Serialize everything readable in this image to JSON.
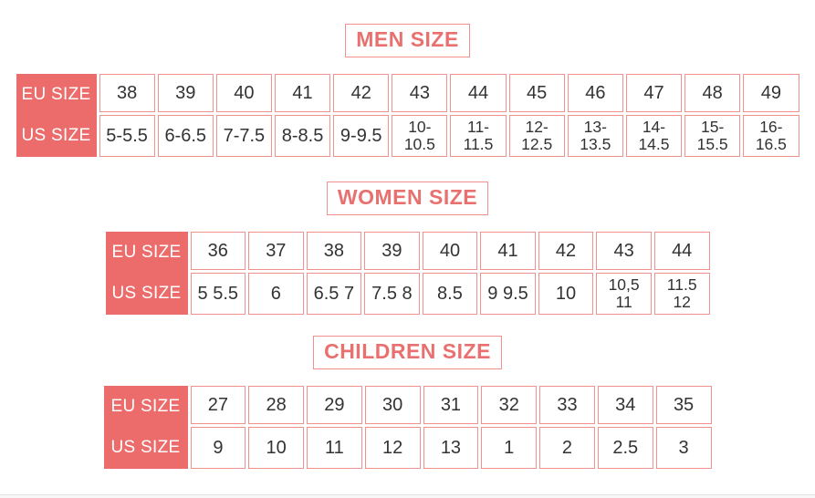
{
  "colors": {
    "accent": "#ec6c6c",
    "cell_border": "#f0918e",
    "title_text": "#e8716f",
    "cell_text": "#333333"
  },
  "chart_data": [
    {
      "type": "table",
      "title": "MEN SIZE",
      "row_headers": [
        "EU SIZE",
        "US SIZE"
      ],
      "rows": [
        {
          "name": "EU SIZE",
          "values": [
            "38",
            "39",
            "40",
            "41",
            "42",
            "43",
            "44",
            "45",
            "46",
            "47",
            "48",
            "49"
          ]
        },
        {
          "name": "US SIZE",
          "values": [
            "5-5.5",
            "6-6.5",
            "7-7.5",
            "8-8.5",
            "9-9.5",
            "10-\n10.5",
            "11-\n11.5",
            "12-\n12.5",
            "13-\n13.5",
            "14-\n14.5",
            "15-\n15.5",
            "16-\n16.5"
          ]
        }
      ]
    },
    {
      "type": "table",
      "title": "WOMEN SIZE",
      "row_headers": [
        "EU SIZE",
        "US SIZE"
      ],
      "rows": [
        {
          "name": "EU SIZE",
          "values": [
            "36",
            "37",
            "38",
            "39",
            "40",
            "41",
            "42",
            "43",
            "44"
          ]
        },
        {
          "name": "US SIZE",
          "values": [
            "5 5.5",
            "6",
            "6.5 7",
            "7.5 8",
            "8.5",
            "9 9.5",
            "10",
            "10,5\n11",
            "11.5\n12"
          ]
        }
      ]
    },
    {
      "type": "table",
      "title": "CHILDREN SIZE",
      "row_headers": [
        "EU SIZE",
        "US SIZE"
      ],
      "rows": [
        {
          "name": "EU SIZE",
          "values": [
            "27",
            "28",
            "29",
            "30",
            "31",
            "32",
            "33",
            "34",
            "35"
          ]
        },
        {
          "name": "US SIZE",
          "values": [
            "9",
            "10",
            "11",
            "12",
            "13",
            "1",
            "2",
            "2.5",
            "3"
          ]
        }
      ]
    }
  ]
}
